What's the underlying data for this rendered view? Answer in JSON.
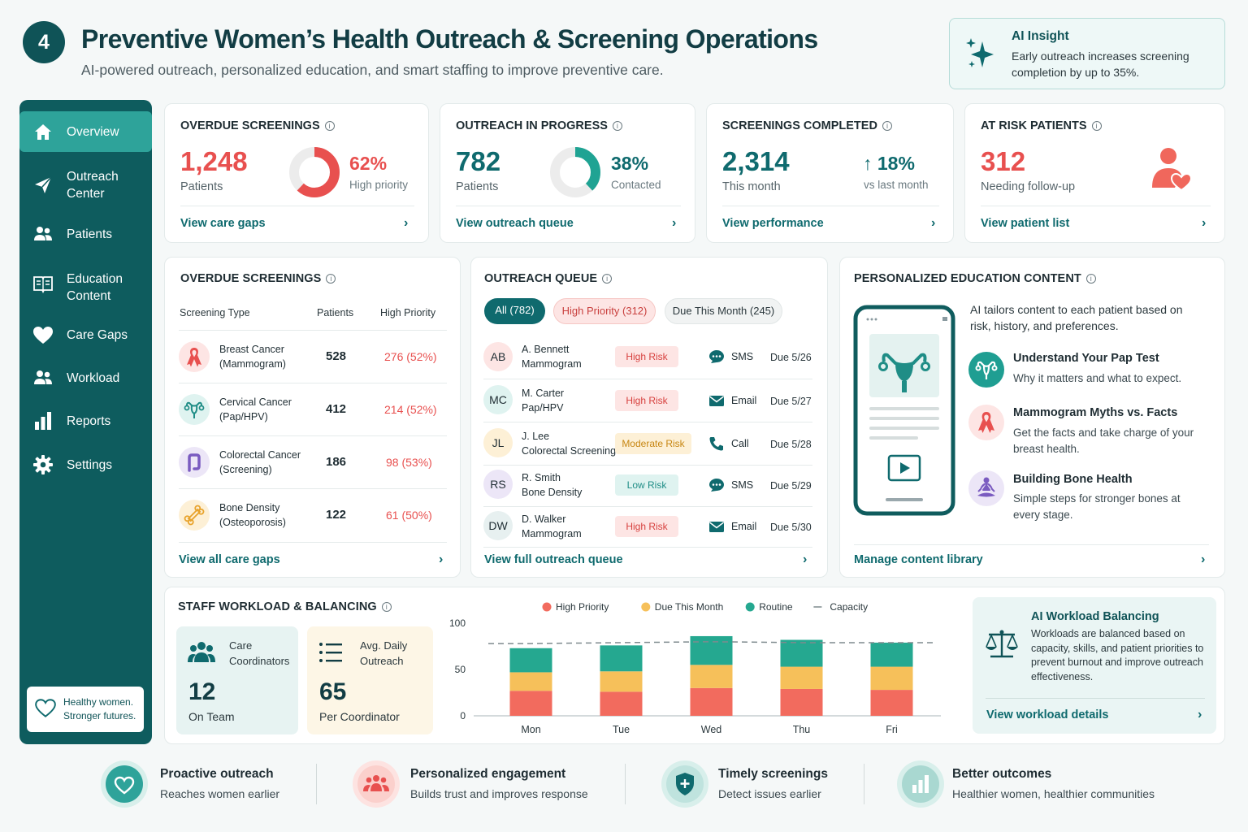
{
  "header": {
    "step": "4",
    "title": "Preventive Women’s Health Outreach & Screening Operations",
    "subtitle": "AI-powered outreach, personalized education, and smart staffing to improve preventive care."
  },
  "insight": {
    "title": "AI Insight",
    "text": "Early outreach increases screening completion by up to 35%.",
    "icon": "sparkle-icon"
  },
  "sidebar": {
    "items": [
      {
        "label": "Overview",
        "icon": "home-icon",
        "active": true
      },
      {
        "label": "Outreach Center",
        "icon": "send-icon"
      },
      {
        "label": "Patients",
        "icon": "people-icon"
      },
      {
        "label": "Education Content",
        "icon": "book-icon"
      },
      {
        "label": "Care Gaps",
        "icon": "heart-icon"
      },
      {
        "label": "Workload",
        "icon": "people-icon"
      },
      {
        "label": "Reports",
        "icon": "bar-chart-icon"
      },
      {
        "label": "Settings",
        "icon": "gear-icon"
      }
    ],
    "tagline": "Healthy women. Stronger futures."
  },
  "kpis": [
    {
      "label": "OVERDUE SCREENINGS",
      "value": "1,248",
      "sub": "Patients",
      "percent": "62%",
      "percent_sub": "High priority",
      "fraction": 0.62,
      "link": "View care gaps",
      "color": "#e8504f"
    },
    {
      "label": "OUTREACH IN PROGRESS",
      "value": "782",
      "sub": "Patients",
      "percent": "38%",
      "percent_sub": "Contacted",
      "fraction": 0.38,
      "link": "View outreach queue",
      "color": "#1fa393"
    },
    {
      "label": "SCREENINGS COMPLETED",
      "value": "2,314",
      "sub": "This month",
      "percent": "↑ 18%",
      "percent_sub": "vs last month",
      "link": "View performance",
      "color": "#0f6a6e"
    },
    {
      "label": "AT RISK PATIENTS",
      "value": "312",
      "sub": "Needing follow-up",
      "link": "View patient list",
      "color": "#e8504f"
    }
  ],
  "overdue": {
    "title": "OVERDUE SCREENINGS",
    "columns": [
      "Screening Type",
      "Patients",
      "High Priority"
    ],
    "rows": [
      {
        "name": "Breast Cancer",
        "detail": "(Mammogram)",
        "patients": "528",
        "priority": "276 (52%)",
        "icon": "ribbon-icon"
      },
      {
        "name": "Cervical Cancer",
        "detail": "(Pap/HPV)",
        "patients": "412",
        "priority": "214 (52%)",
        "icon": "uterus-icon"
      },
      {
        "name": "Colorectal Cancer",
        "detail": "(Screening)",
        "patients": "186",
        "priority": "98 (53%)",
        "icon": "colon-icon"
      },
      {
        "name": "Bone Density",
        "detail": "(Osteoporosis)",
        "patients": "122",
        "priority": "61 (50%)",
        "icon": "bone-icon"
      }
    ],
    "link": "View all care gaps"
  },
  "queue": {
    "title": "OUTREACH QUEUE",
    "filters": [
      "All (782)",
      "High Priority (312)",
      "Due This Month (245)"
    ],
    "rows": [
      {
        "initials": "AB",
        "name": "A. Bennett",
        "screening": "Mammogram",
        "risk": "High Risk",
        "channel": "SMS",
        "due": "Due 5/26"
      },
      {
        "initials": "MC",
        "name": "M. Carter",
        "screening": "Pap/HPV",
        "risk": "High Risk",
        "channel": "Email",
        "due": "Due 5/27"
      },
      {
        "initials": "JL",
        "name": "J. Lee",
        "screening": "Colorectal Screening",
        "risk": "Moderate Risk",
        "channel": "Call",
        "due": "Due 5/28"
      },
      {
        "initials": "RS",
        "name": "R. Smith",
        "screening": "Bone Density",
        "risk": "Low Risk",
        "channel": "SMS",
        "due": "Due 5/29"
      },
      {
        "initials": "DW",
        "name": "D. Walker",
        "screening": "Mammogram",
        "risk": "High Risk",
        "channel": "Email",
        "due": "Due 5/30"
      }
    ],
    "link": "View full outreach queue"
  },
  "education": {
    "title": "PERSONALIZED EDUCATION CONTENT",
    "intro": "AI tailors content to each patient based on risk, history, and preferences.",
    "items": [
      {
        "title": "Understand Your Pap Test",
        "desc": "Why it matters and what to expect.",
        "icon": "uterus-icon"
      },
      {
        "title": "Mammogram Myths vs. Facts",
        "desc": "Get the facts and take charge of your breast health.",
        "icon": "ribbon-icon"
      },
      {
        "title": "Building Bone Health",
        "desc": "Simple steps for stronger bones at every stage.",
        "icon": "meditation-icon"
      }
    ],
    "link": "Manage content library"
  },
  "workload": {
    "title": "STAFF WORKLOAD & BALANCING",
    "coordinators": {
      "label": "Care Coordinators",
      "value": "12",
      "sub": "On Team"
    },
    "outreach": {
      "label": "Avg. Daily Outreach",
      "value": "65",
      "sub": "Per Coordinator"
    },
    "ai": {
      "title": "AI Workload Balancing",
      "text": "Workloads are balanced based on capacity, skills, and patient priorities to prevent burnout and improve outreach effectiveness.",
      "link": "View workload details"
    }
  },
  "chart_data": {
    "type": "bar",
    "stacked": true,
    "categories": [
      "Mon",
      "Tue",
      "Wed",
      "Thu",
      "Fri"
    ],
    "series": [
      {
        "name": "High Priority",
        "color": "#f26b5e",
        "values": [
          27,
          26,
          30,
          29,
          28
        ]
      },
      {
        "name": "Due This Month",
        "color": "#f6c05a",
        "values": [
          20,
          22,
          25,
          24,
          25
        ]
      },
      {
        "name": "Routine",
        "color": "#25a890",
        "values": [
          26,
          28,
          31,
          29,
          26
        ]
      }
    ],
    "capacity": {
      "name": "Capacity",
      "values": [
        78,
        79,
        80,
        79,
        79
      ]
    },
    "ylim": [
      0,
      100
    ],
    "yticks": [
      0,
      50,
      100
    ],
    "legend": "top"
  },
  "footer": [
    {
      "title": "Proactive outreach",
      "desc": "Reaches women earlier",
      "icon": "heart-icon"
    },
    {
      "title": "Personalized engagement",
      "desc": "Builds trust and improves response",
      "icon": "people-icon"
    },
    {
      "title": "Timely screenings",
      "desc": "Detect issues earlier",
      "icon": "shield-icon"
    },
    {
      "title": "Better outcomes",
      "desc": "Healthier women, healthier communities",
      "icon": "bar-chart-icon"
    }
  ]
}
